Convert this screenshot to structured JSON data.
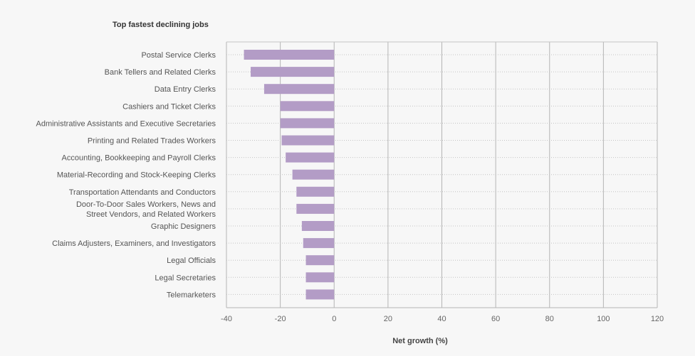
{
  "chart_data": {
    "type": "bar",
    "orientation": "horizontal",
    "title": "Top fastest declining jobs",
    "xlabel": "Net growth (%)",
    "categories": [
      "Postal Service Clerks",
      "Bank Tellers and Related Clerks",
      "Data Entry Clerks",
      "Cashiers and Ticket Clerks",
      "Administrative Assistants and Executive Secretaries",
      "Printing and Related Trades Workers",
      "Accounting, Bookkeeping and Payroll Clerks",
      "Material-Recording and Stock-Keeping Clerks",
      "Transportation Attendants and Conductors",
      "Door-To-Door Sales Workers, News and Street Vendors, and Related Workers",
      "Graphic Designers",
      "Claims Adjusters, Examiners, and Investigators",
      "Legal Officials",
      "Legal Secretaries",
      "Telemarketers"
    ],
    "category_lines": [
      [
        "Postal Service Clerks"
      ],
      [
        "Bank Tellers and Related Clerks"
      ],
      [
        "Data Entry Clerks"
      ],
      [
        "Cashiers and Ticket Clerks"
      ],
      [
        "Administrative Assistants and Executive Secretaries"
      ],
      [
        "Printing and Related Trades Workers"
      ],
      [
        "Accounting, Bookkeeping and Payroll Clerks"
      ],
      [
        "Material-Recording and Stock-Keeping Clerks"
      ],
      [
        "Transportation Attendants and Conductors"
      ],
      [
        "Door-To-Door Sales Workers, News and",
        "Street Vendors, and Related Workers"
      ],
      [
        "Graphic Designers"
      ],
      [
        "Claims Adjusters, Examiners, and Investigators"
      ],
      [
        "Legal Officials"
      ],
      [
        "Legal Secretaries"
      ],
      [
        "Telemarketers"
      ]
    ],
    "values": [
      -33.5,
      -31,
      -26,
      -20,
      -20,
      -19.5,
      -18,
      -15.5,
      -14,
      -14,
      -12,
      -11.5,
      -10.5,
      -10.5,
      -10.5
    ],
    "xlim": [
      -40,
      120
    ],
    "xticks": [
      -40,
      -20,
      0,
      20,
      40,
      60,
      80,
      100,
      120
    ],
    "colors": {
      "bar": "#b39cc6",
      "gridline": "#b5b5b5",
      "dotted": "#c4c4c4",
      "background": "#f7f7f7"
    },
    "grid": true
  }
}
